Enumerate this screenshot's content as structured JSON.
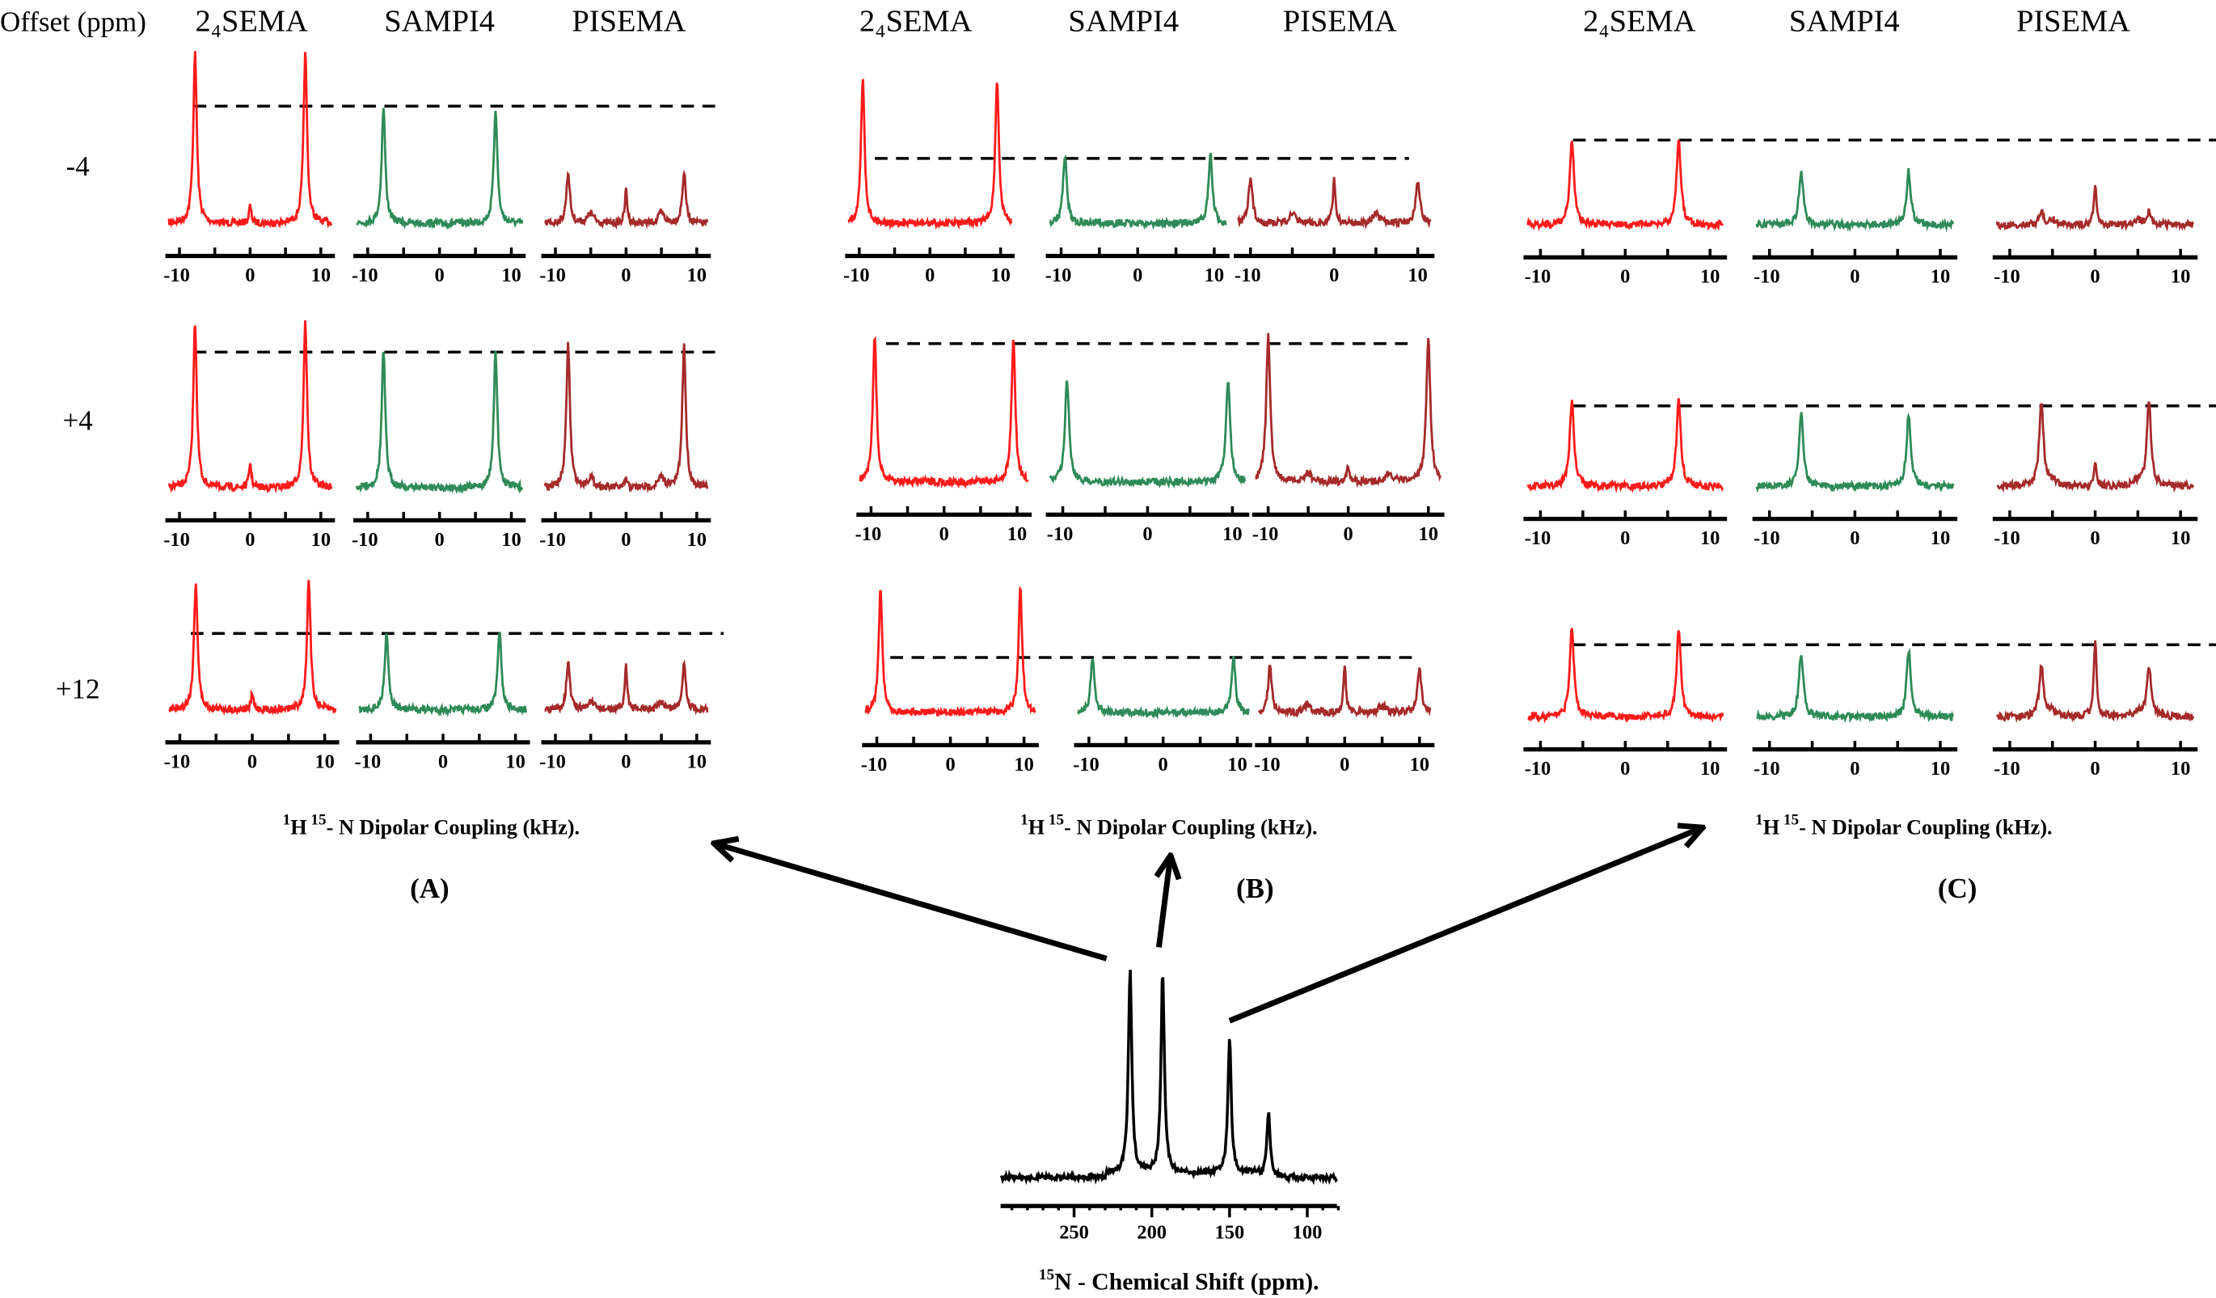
{
  "offset_header": "Offset (ppm)",
  "chart_data": {
    "type": "line",
    "title": "",
    "methods": [
      "24SEMA",
      "SAMPI4",
      "PISEMA"
    ],
    "method_headers": [
      "2₄SEMA",
      "SAMPI4",
      "PISEMA"
    ],
    "colors": {
      "24SEMA": "#ff1a1a",
      "SAMPI4": "#2e8b57",
      "PISEMA": "#a52a2a"
    },
    "offsets": [
      "-4",
      "+4",
      "+12"
    ],
    "x_ticks": [
      -10,
      -5,
      0,
      5,
      10
    ],
    "x_tick_labels": [
      "-10",
      "0",
      "10"
    ],
    "xlim": [
      -12,
      12
    ],
    "xlabel": {
      "sup1": "1",
      "h": "H",
      "sup2": "15",
      "rest": "- N Dipolar Coupling (kHz)."
    },
    "panels": [
      {
        "label": "(A)",
        "rows": [
          {
            "offset": "-4",
            "spectra": [
              {
                "method": "24SEMA",
                "splitting_khz": 7.8,
                "peak_rel": 1.0,
                "center_rel": 0.1
              },
              {
                "method": "SAMPI4",
                "splitting_khz": 7.8,
                "peak_rel": 0.68,
                "center_rel": 0.0
              },
              {
                "method": "PISEMA",
                "splitting_khz": 8.2,
                "peak_rel": 0.3,
                "center_rel": 0.2
              }
            ]
          },
          {
            "offset": "+4",
            "spectra": [
              {
                "method": "24SEMA",
                "splitting_khz": 7.8,
                "peak_rel": 1.0,
                "center_rel": 0.15
              },
              {
                "method": "SAMPI4",
                "splitting_khz": 7.8,
                "peak_rel": 0.83,
                "center_rel": 0.0
              },
              {
                "method": "PISEMA",
                "splitting_khz": 8.2,
                "peak_rel": 0.87,
                "center_rel": 0.05
              }
            ]
          },
          {
            "offset": "+12",
            "spectra": [
              {
                "method": "24SEMA",
                "splitting_khz": 7.8,
                "peak_rel": 1.0,
                "center_rel": 0.12
              },
              {
                "method": "SAMPI4",
                "splitting_khz": 7.8,
                "peak_rel": 0.62,
                "center_rel": 0.0
              },
              {
                "method": "PISEMA",
                "splitting_khz": 8.2,
                "peak_rel": 0.37,
                "center_rel": 0.36
              }
            ]
          }
        ]
      },
      {
        "label": "(B)",
        "rows": [
          {
            "offset": "-4",
            "spectra": [
              {
                "method": "24SEMA",
                "splitting_khz": 9.5,
                "peak_rel": 1.0,
                "center_rel": 0.0
              },
              {
                "method": "SAMPI4",
                "splitting_khz": 9.5,
                "peak_rel": 0.48,
                "center_rel": 0.0
              },
              {
                "method": "PISEMA",
                "splitting_khz": 10.0,
                "peak_rel": 0.3,
                "center_rel": 0.3
              }
            ]
          },
          {
            "offset": "+4",
            "spectra": [
              {
                "method": "24SEMA",
                "splitting_khz": 9.5,
                "peak_rel": 1.0,
                "center_rel": 0.0
              },
              {
                "method": "SAMPI4",
                "splitting_khz": 9.5,
                "peak_rel": 0.7,
                "center_rel": 0.0
              },
              {
                "method": "PISEMA",
                "splitting_khz": 10.0,
                "peak_rel": 1.0,
                "center_rel": 0.1
              }
            ]
          },
          {
            "offset": "+12",
            "spectra": [
              {
                "method": "24SEMA",
                "splitting_khz": 9.5,
                "peak_rel": 1.0,
                "center_rel": 0.0
              },
              {
                "method": "SAMPI4",
                "splitting_khz": 9.5,
                "peak_rel": 0.46,
                "center_rel": 0.0
              },
              {
                "method": "PISEMA",
                "splitting_khz": 10.0,
                "peak_rel": 0.37,
                "center_rel": 0.37
              }
            ]
          }
        ]
      },
      {
        "label": "(C)",
        "rows": [
          {
            "offset": "-4",
            "spectra": [
              {
                "method": "24SEMA",
                "splitting_khz": 6.3,
                "peak_rel": 1.0,
                "center_rel": 0.0
              },
              {
                "method": "SAMPI4",
                "splitting_khz": 6.3,
                "peak_rel": 0.62,
                "center_rel": 0.0
              },
              {
                "method": "PISEMA",
                "splitting_khz": 6.3,
                "peak_rel": 0.15,
                "center_rel": 0.45
              }
            ]
          },
          {
            "offset": "+4",
            "spectra": [
              {
                "method": "24SEMA",
                "splitting_khz": 6.3,
                "peak_rel": 1.0,
                "center_rel": 0.0
              },
              {
                "method": "SAMPI4",
                "splitting_khz": 6.3,
                "peak_rel": 0.84,
                "center_rel": 0.0
              },
              {
                "method": "PISEMA",
                "splitting_khz": 6.3,
                "peak_rel": 0.97,
                "center_rel": 0.25
              }
            ]
          },
          {
            "offset": "+12",
            "spectra": [
              {
                "method": "24SEMA",
                "splitting_khz": 6.3,
                "peak_rel": 1.0,
                "center_rel": 0.0
              },
              {
                "method": "SAMPI4",
                "splitting_khz": 6.3,
                "peak_rel": 0.74,
                "center_rel": 0.0
              },
              {
                "method": "PISEMA",
                "splitting_khz": 6.3,
                "peak_rel": 0.58,
                "center_rel": 0.9
              }
            ]
          }
        ]
      }
    ],
    "chemical_shift": {
      "type": "line",
      "peaks_ppm": [
        214,
        193,
        150,
        125
      ],
      "peak_rel": [
        1.0,
        1.0,
        0.66,
        0.32
      ],
      "x_ticks": [
        250,
        200,
        150,
        100
      ],
      "xlim": [
        297,
        81
      ],
      "xlabel": {
        "sup": "15",
        "rest": "N - Chemical Shift (ppm)."
      }
    }
  }
}
